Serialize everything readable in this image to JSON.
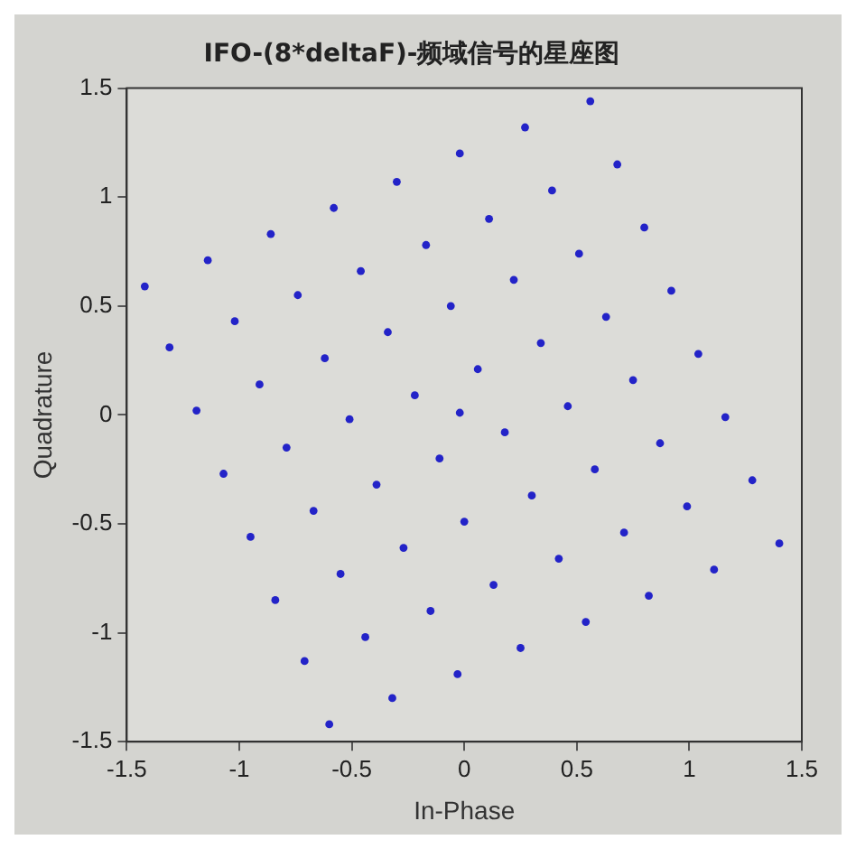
{
  "chart_data": {
    "type": "scatter",
    "title": "IFO-(8*deltaF)-频域信号的星座图",
    "xlabel": "In-Phase",
    "ylabel": "Quadrature",
    "xlim": [
      -1.5,
      1.5
    ],
    "ylim": [
      -1.5,
      1.5
    ],
    "xticks": [
      -1.5,
      -1,
      -0.5,
      0,
      0.5,
      1,
      1.5
    ],
    "yticks": [
      -1.5,
      -1,
      -0.5,
      0,
      0.5,
      1,
      1.5
    ],
    "grid": false,
    "legend": false,
    "marker": "circle",
    "series": [
      {
        "color": "#2323c8",
        "x": [
          -0.02,
          -0.3,
          -0.58,
          -0.86,
          -1.14,
          -1.42,
          -0.17,
          -0.46,
          -0.74,
          -1.02,
          -1.31,
          -0.06,
          -0.34,
          -0.62,
          -0.91,
          -1.19,
          -0.22,
          -0.51,
          -0.02,
          0.56,
          0.27,
          0.68,
          0.39,
          0.11,
          0.8,
          0.51,
          0.22,
          0.92,
          0.63,
          0.34,
          0.06,
          1.04,
          0.75,
          0.46,
          1.16,
          -0.79,
          -1.07,
          -0.11,
          -0.39,
          -0.67,
          -0.95,
          0,
          -0.27,
          -0.55,
          -0.84,
          -0.15,
          -0.44,
          -0.71,
          -0.03,
          -0.32,
          -0.6,
          0.18,
          0.87,
          0.58,
          0.3,
          1.28,
          0.99,
          0.71,
          0.42,
          0.13,
          1.4,
          1.11,
          0.82,
          0.54,
          0.25
        ],
        "values": [
          1.2,
          1.07,
          0.95,
          0.83,
          0.71,
          0.59,
          0.78,
          0.66,
          0.55,
          0.43,
          0.31,
          0.5,
          0.38,
          0.26,
          0.14,
          0.02,
          0.09,
          -0.02,
          0.01,
          1.44,
          1.32,
          1.15,
          1.03,
          0.9,
          0.86,
          0.74,
          0.62,
          0.57,
          0.45,
          0.33,
          0.21,
          0.28,
          0.16,
          0.04,
          -0.01,
          -0.15,
          -0.27,
          -0.2,
          -0.32,
          -0.44,
          -0.56,
          -0.49,
          -0.61,
          -0.73,
          -0.85,
          -0.9,
          -1.02,
          -1.13,
          -1.19,
          -1.3,
          -1.42,
          -0.08,
          -0.13,
          -0.25,
          -0.37,
          -0.3,
          -0.42,
          -0.54,
          -0.66,
          -0.78,
          -0.59,
          -0.71,
          -0.83,
          -0.95,
          -1.07
        ]
      }
    ]
  }
}
